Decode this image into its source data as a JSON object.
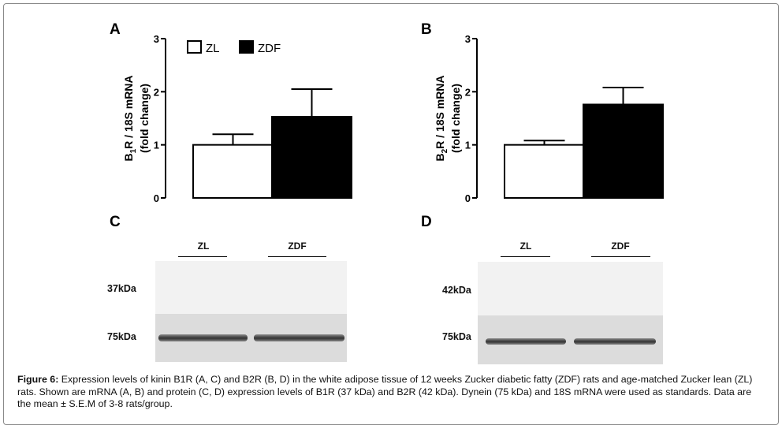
{
  "panels": {
    "A": {
      "letter": "A"
    },
    "B": {
      "letter": "B"
    },
    "C": {
      "letter": "C"
    },
    "D": {
      "letter": "D"
    }
  },
  "chart_data": [
    {
      "type": "bar",
      "panel": "A",
      "categories": [
        "ZL",
        "ZDF"
      ],
      "values": [
        1.0,
        1.53
      ],
      "error": [
        0.2,
        0.52
      ],
      "colors": [
        "#ffffff",
        "#000000"
      ],
      "ylabel_line1": "B1R / 18S mRNA",
      "ylabel_line2": "(fold change)",
      "ylim": [
        0,
        3
      ],
      "yticks": [
        "0",
        "1",
        "2",
        "3"
      ],
      "legend": [
        {
          "label": "ZL",
          "color": "#ffffff"
        },
        {
          "label": "ZDF",
          "color": "#000000"
        }
      ],
      "legend_position": "top-left"
    },
    {
      "type": "bar",
      "panel": "B",
      "categories": [
        "ZL",
        "ZDF"
      ],
      "values": [
        1.0,
        1.76
      ],
      "error": [
        0.08,
        0.32
      ],
      "colors": [
        "#ffffff",
        "#000000"
      ],
      "ylabel_line1": "B2R / 18S mRNA",
      "ylabel_line2": "(fold change)",
      "ylim": [
        0,
        3
      ],
      "yticks": [
        "0",
        "1",
        "2",
        "3"
      ]
    }
  ],
  "blots": {
    "C": {
      "lane1": "ZL",
      "lane2": "ZDF",
      "mw_top": "37kDa",
      "mw_bottom": "75kDa"
    },
    "D": {
      "lane1": "ZL",
      "lane2": "ZDF",
      "mw_top": "42kDa",
      "mw_bottom": "75kDa"
    }
  },
  "caption": {
    "label": "Figure 6:",
    "text": " Expression levels of kinin B1R (A, C) and B2R (B, D) in the white adipose tissue of 12 weeks Zucker diabetic fatty (ZDF) rats and age-matched Zucker lean (ZL) rats. Shown are mRNA (A, B) and protein (C, D) expression levels of B1R (37 kDa) and B2R (42 kDa). Dynein (75 kDa) and 18S mRNA were used as standards. Data are the mean ± S.E.M of 3-8 rats/group."
  }
}
